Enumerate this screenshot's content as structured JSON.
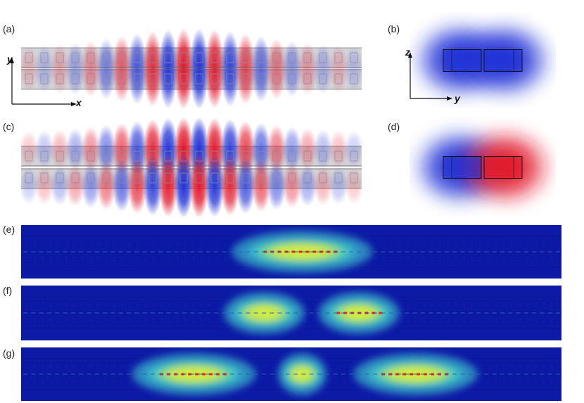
{
  "panels": {
    "a": {
      "label": "(a)",
      "axis_x": "x",
      "axis_y": "y"
    },
    "b": {
      "label": "(b)",
      "axis_y": "y",
      "axis_z": "z"
    },
    "c": {
      "label": "(c)"
    },
    "d": {
      "label": "(d)"
    },
    "e": {
      "label": "(e)"
    },
    "f": {
      "label": "(f)"
    },
    "g": {
      "label": "(g)"
    }
  },
  "colors": {
    "positive": "#e2162a",
    "negative": "#1e2fd6",
    "intensity_background": "#0c1aa6",
    "intensity_mid": "#42d6cf",
    "intensity_high": "#d9f23a",
    "intensity_peak": "#e8261c",
    "waveguide_gray": "#d4d4d8"
  }
}
